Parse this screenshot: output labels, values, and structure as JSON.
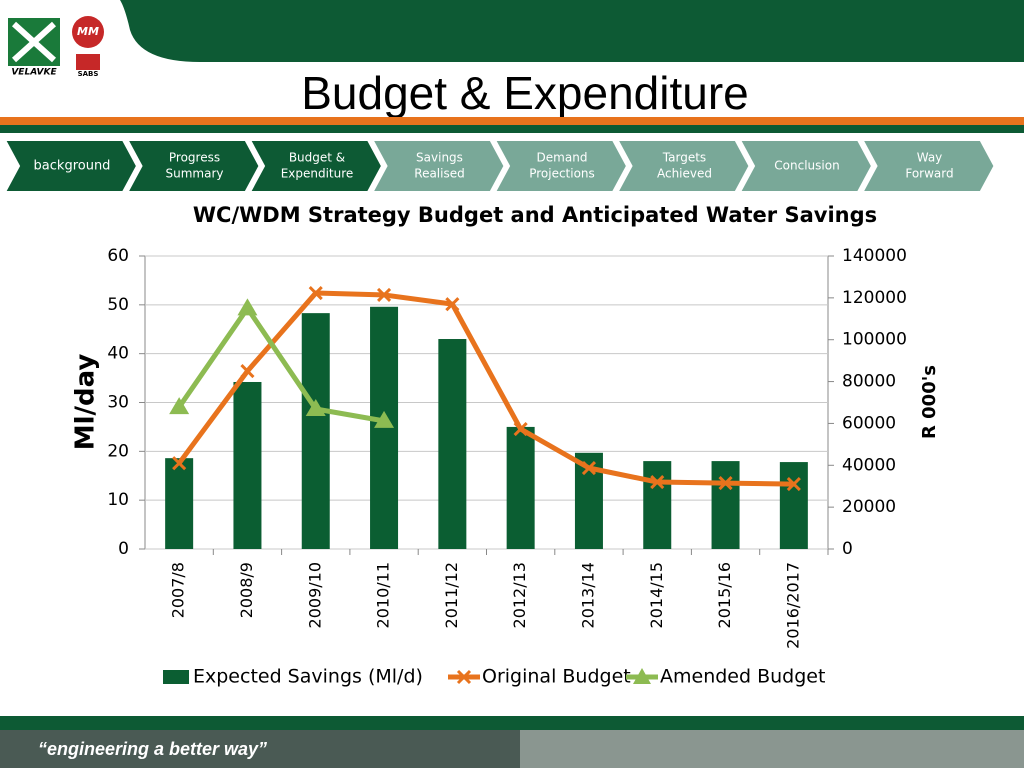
{
  "header": {
    "title": "Budget & Expenditure",
    "logo_left": "VELAVKE",
    "logo_right": "SABS",
    "logo_mark": "MM"
  },
  "nav": {
    "items": [
      [
        "background"
      ],
      [
        "Progress",
        "Summary"
      ],
      [
        "Budget &",
        "Expenditure"
      ],
      [
        "Savings",
        "Realised"
      ],
      [
        "Demand",
        "Projections"
      ],
      [
        "Targets",
        "Achieved"
      ],
      [
        "Conclusion"
      ],
      [
        "Way",
        "Forward"
      ]
    ]
  },
  "footer": {
    "slogan": "“engineering a better way”"
  },
  "chart_data": {
    "type": "bar_line",
    "title": "WC/WDM Strategy Budget and Anticipated Water Savings",
    "ylabel": "Ml/day",
    "y2label": "R 000's",
    "categories": [
      "2007/8",
      "2008/9",
      "2009/10",
      "2010/11",
      "2011/12",
      "2012/13",
      "2013/14",
      "2014/15",
      "2015/16",
      "2016/2017"
    ],
    "series": [
      {
        "name": "Expected Savings (Ml/d)",
        "type": "bar",
        "color": "#0b5e32",
        "values": [
          18.6,
          34.2,
          48.3,
          49.6,
          43,
          25,
          19.7,
          18,
          18,
          17.8
        ]
      },
      {
        "name": "Original Budget",
        "type": "line",
        "marker": "x",
        "axis": "y2",
        "color": "#e8731d",
        "values": [
          41000,
          85000,
          122300,
          121400,
          117000,
          57300,
          38700,
          32000,
          31500,
          31000
        ]
      },
      {
        "name": "Amended Budget",
        "type": "line",
        "marker": "triangle",
        "axis": "y2",
        "color": "#8dbb52",
        "values": [
          67800,
          115000,
          66900,
          61200,
          null,
          null,
          null,
          null,
          null,
          null
        ]
      }
    ],
    "ylim": [
      0,
      60
    ],
    "yticks": [
      0,
      10,
      20,
      30,
      40,
      50,
      60
    ],
    "y2lim": [
      0,
      140000
    ],
    "y2ticks": [
      0,
      20000,
      40000,
      60000,
      80000,
      100000,
      120000,
      140000
    ]
  }
}
